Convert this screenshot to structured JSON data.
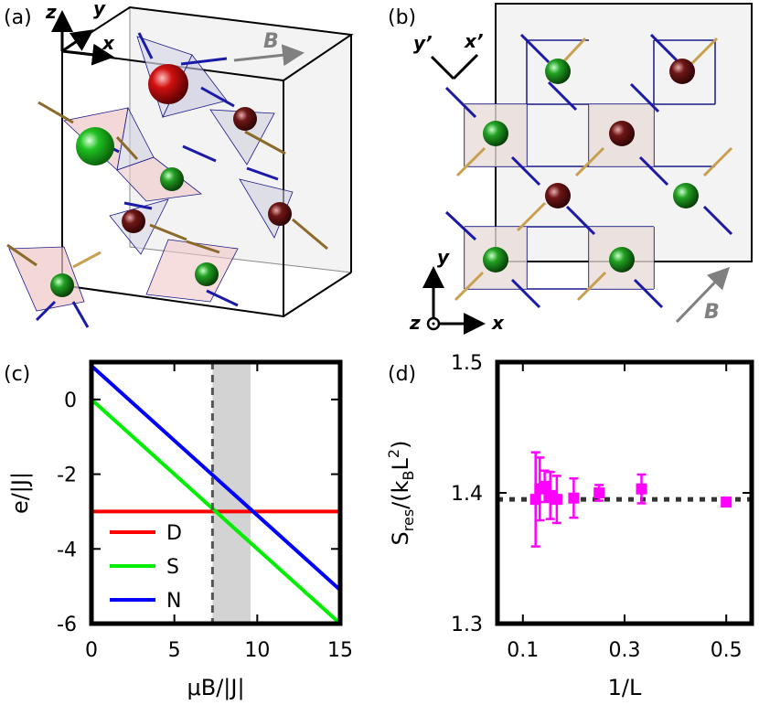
{
  "panels": {
    "a": {
      "label": "(a)",
      "axes": {
        "z": "z",
        "y": "y",
        "x": "x"
      },
      "field_label": "B"
    },
    "b": {
      "label": "(b)",
      "axes": {
        "y_prime": "y’",
        "x_prime": "x’",
        "y": "y",
        "x": "x",
        "z": "z"
      },
      "field_label": "B"
    }
  },
  "colors": {
    "D": "#ff0000",
    "S": "#00ee00",
    "N": "#0000ff",
    "points": "#ff00ff",
    "shade": "#d3d3d3",
    "sphere_green": "#1f7a1f",
    "sphere_red": "#6a1010",
    "spin_blue": "#1a1aa8",
    "spin_gold": "#c8a050"
  },
  "chart_data": [
    {
      "panel": "(c)",
      "type": "line",
      "xlabel": "μB/|J|",
      "ylabel": "e/|J|",
      "xlim": [
        0,
        15
      ],
      "ylim": [
        -6,
        1
      ],
      "xticks": [
        "0",
        "5",
        "10",
        "15"
      ],
      "yticks": [
        "0",
        "-2",
        "-4",
        "-6"
      ],
      "vline": 7.3,
      "shaded_region": [
        7.3,
        9.6
      ],
      "series": [
        {
          "name": "D",
          "x": [
            0,
            15
          ],
          "y": [
            -3,
            -3
          ]
        },
        {
          "name": "S",
          "x": [
            0,
            15
          ],
          "y": [
            0,
            -6
          ]
        },
        {
          "name": "N",
          "x": [
            0,
            15
          ],
          "y": [
            0.9,
            -5.1
          ]
        }
      ]
    },
    {
      "panel": "(d)",
      "type": "scatter",
      "xlabel": "1/L",
      "ylabel": "S_res/(k_B L^2)",
      "ylabel_parts": {
        "s": "S",
        "res": "res",
        "mid": "/(k",
        "b": "B",
        "l": "L",
        "sup": "2",
        "end": ")"
      },
      "xlim": [
        0.05,
        0.55
      ],
      "ylim": [
        1.3,
        1.5
      ],
      "xticks": [
        "0.1",
        "0.3",
        "0.5"
      ],
      "yticks": [
        "1.5",
        "1.4",
        "1.3"
      ],
      "hline": 1.395,
      "points": [
        {
          "x": 0.125,
          "y": 1.395,
          "err": 0.036
        },
        {
          "x": 0.1333,
          "y": 1.403,
          "err": 0.024
        },
        {
          "x": 0.1429,
          "y": 1.405,
          "err": 0.012
        },
        {
          "x": 0.1538,
          "y": 1.398,
          "err": 0.018
        },
        {
          "x": 0.1667,
          "y": 1.395,
          "err": 0.018
        },
        {
          "x": 0.2,
          "y": 1.396,
          "err": 0.015
        },
        {
          "x": 0.25,
          "y": 1.4,
          "err": 0.006
        },
        {
          "x": 0.3333,
          "y": 1.403,
          "err": 0.011
        },
        {
          "x": 0.5,
          "y": 1.393,
          "err": 0.003
        }
      ]
    }
  ]
}
